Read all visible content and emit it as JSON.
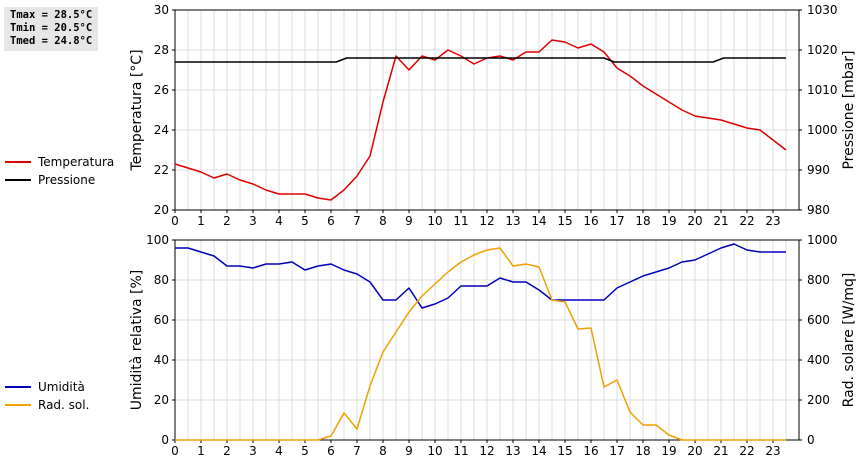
{
  "stats": {
    "tmax": "Tmax = 28.5°C",
    "tmin": "Tmin = 20.5°C",
    "tmed": "Tmed = 24.8°C"
  },
  "chart_data": [
    {
      "type": "line",
      "x_ticks": [
        "0",
        "1",
        "2",
        "3",
        "4",
        "5",
        "6",
        "7",
        "8",
        "9",
        "10",
        "11",
        "12",
        "13",
        "14",
        "15",
        "16",
        "17",
        "18",
        "19",
        "20",
        "21",
        "22",
        "23"
      ],
      "xlim": [
        0,
        24
      ],
      "ylabel_left": "Temperatura [°C]",
      "ylabel_right": "Pressione [mbar]",
      "ylim_left": [
        20,
        30
      ],
      "yticks_left": [
        20,
        22,
        24,
        26,
        28,
        30
      ],
      "ylim_right": [
        980,
        1030
      ],
      "yticks_right": [
        980,
        990,
        1000,
        1010,
        1020,
        1030
      ],
      "grid": true,
      "legend_position": "left",
      "series": [
        {
          "name": "Temperatura",
          "color": "#dd0000",
          "axis": "left",
          "x": [
            0,
            0.5,
            1,
            1.5,
            2,
            2.5,
            3,
            3.5,
            4,
            4.5,
            5,
            5.5,
            6,
            6.5,
            7,
            7.5,
            8,
            8.5,
            9,
            9.5,
            10,
            10.5,
            11,
            11.5,
            12,
            12.5,
            13,
            13.5,
            14,
            14.5,
            15,
            15.5,
            16,
            16.5,
            17,
            17.5,
            18,
            18.5,
            19,
            19.5,
            20,
            20.5,
            21,
            21.5,
            22,
            22.5,
            23,
            23.5
          ],
          "y": [
            22.3,
            22.1,
            21.9,
            21.6,
            21.8,
            21.5,
            21.3,
            21.0,
            20.8,
            20.8,
            20.8,
            20.6,
            20.5,
            21.0,
            21.7,
            22.7,
            25.4,
            27.7,
            27.0,
            27.7,
            27.5,
            28.0,
            27.7,
            27.3,
            27.6,
            27.7,
            27.5,
            27.9,
            27.9,
            28.5,
            28.4,
            28.1,
            28.3,
            27.9,
            27.1,
            26.7,
            26.2,
            25.8,
            25.4,
            25.0,
            24.7,
            24.6,
            24.5,
            24.3,
            24.1,
            24.0,
            23.5,
            23.0
          ]
        },
        {
          "name": "Pressione",
          "color": "#000000",
          "axis": "right",
          "x": [
            0,
            6.2,
            6.6,
            16.5,
            16.9,
            20.7,
            21.1,
            23.5
          ],
          "y": [
            1017,
            1017,
            1018,
            1018,
            1017,
            1017,
            1018,
            1018
          ]
        }
      ]
    },
    {
      "type": "line",
      "x_ticks": [
        "0",
        "1",
        "2",
        "3",
        "4",
        "5",
        "6",
        "7",
        "8",
        "9",
        "10",
        "11",
        "12",
        "13",
        "14",
        "15",
        "16",
        "17",
        "18",
        "19",
        "20",
        "21",
        "22",
        "23"
      ],
      "xlim": [
        0,
        24
      ],
      "ylabel_left": "Umidità relativa [%]",
      "ylabel_right": "Rad. solare [W/mq]",
      "ylim_left": [
        0,
        100
      ],
      "yticks_left": [
        0,
        20,
        40,
        60,
        80,
        100
      ],
      "ylim_right": [
        0,
        1000
      ],
      "yticks_right": [
        0,
        200,
        400,
        600,
        800,
        1000
      ],
      "grid": true,
      "legend_position": "left",
      "series": [
        {
          "name": "Umidità",
          "color": "#0000bb",
          "axis": "left",
          "x": [
            0,
            0.5,
            1,
            1.5,
            2,
            2.5,
            3,
            3.5,
            4,
            4.5,
            5,
            5.5,
            6,
            6.5,
            7,
            7.5,
            8,
            8.5,
            9,
            9.5,
            10,
            10.5,
            11,
            11.5,
            12,
            12.5,
            13,
            13.5,
            14,
            14.5,
            15,
            15.5,
            16,
            16.5,
            17,
            17.5,
            18,
            18.5,
            19,
            19.5,
            20,
            20.5,
            21,
            21.5,
            22,
            22.5,
            23,
            23.5
          ],
          "y": [
            96,
            96,
            94,
            92,
            87,
            87,
            86,
            88,
            88,
            89,
            85,
            87,
            88,
            85,
            83,
            79,
            70,
            70,
            76,
            66,
            68,
            71,
            77,
            77,
            77,
            81,
            79,
            79,
            75,
            70,
            70,
            70,
            70,
            70,
            76,
            79,
            82,
            84,
            86,
            89,
            90,
            93,
            96,
            98,
            95,
            94,
            94,
            94
          ]
        },
        {
          "name": "Rad. sol.",
          "color": "#f0a000",
          "axis": "right",
          "x": [
            0,
            0.5,
            1,
            1.5,
            2,
            2.5,
            3,
            3.5,
            4,
            4.5,
            5,
            5.5,
            6,
            6.5,
            7,
            7.5,
            8,
            8.5,
            9,
            9.5,
            10,
            10.5,
            11,
            11.5,
            12,
            12.5,
            13,
            13.5,
            14,
            14.5,
            15,
            15.5,
            16,
            16.5,
            17,
            17.5,
            18,
            18.5,
            19,
            19.5,
            20,
            20.5,
            21,
            21.5,
            22,
            22.5,
            23,
            23.5
          ],
          "y": [
            0,
            0,
            0,
            0,
            0,
            0,
            0,
            0,
            0,
            0,
            0,
            0,
            20,
            135,
            55,
            270,
            440,
            540,
            640,
            720,
            780,
            840,
            890,
            925,
            950,
            960,
            870,
            880,
            865,
            700,
            690,
            555,
            560,
            265,
            300,
            140,
            75,
            75,
            25,
            0,
            0,
            0,
            0,
            0,
            0,
            0,
            0,
            0
          ]
        }
      ]
    }
  ]
}
